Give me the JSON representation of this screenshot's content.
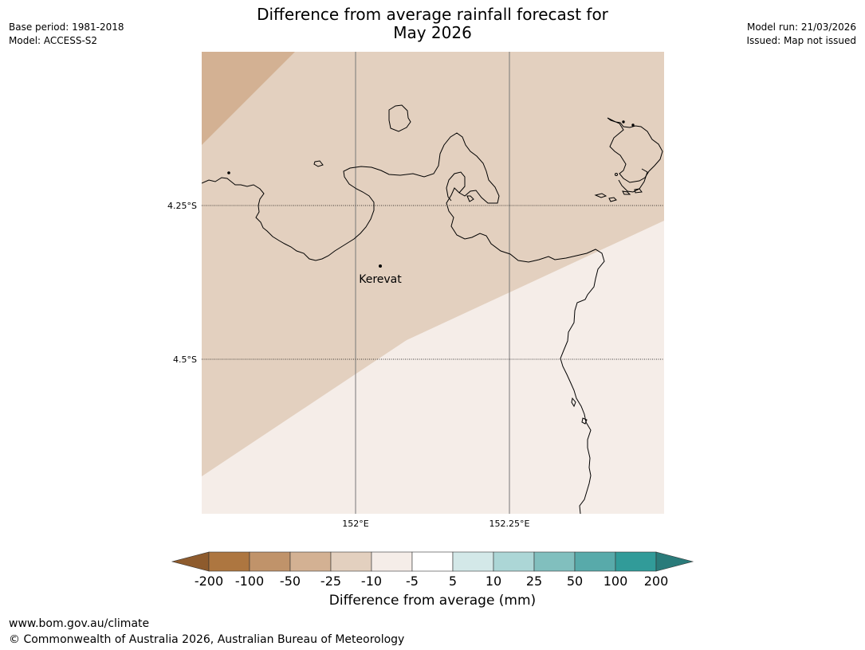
{
  "header": {
    "base_period": "Base period: 1981-2018",
    "model": "Model: ACCESS-S2",
    "model_run": "Model run: 21/03/2026",
    "issued": "Issued: Map not issued",
    "title_line1": "Difference from average rainfall forecast for",
    "title_line2": "May 2026"
  },
  "map": {
    "lat_labels": [
      "4.25°S",
      "4.5°S"
    ],
    "lon_labels": [
      "152°E",
      "152.25°E"
    ],
    "place": {
      "name": "Kerevat",
      "lat": -4.35,
      "lon": 152.04
    },
    "extent": {
      "lon_min": 151.75,
      "lon_max": 152.5,
      "lat_min": -4.75,
      "lat_max": -4.0
    },
    "shading_colors": {
      "-50 to -25": "#d3b193",
      "-25 to -10": "#e3d0bf",
      "-10 to -5": "#f5ede8"
    }
  },
  "colorbar": {
    "title": "Difference from average (mm)",
    "ticks": [
      "-200",
      "-100",
      "-50",
      "-25",
      "-10",
      "-5",
      "5",
      "10",
      "25",
      "50",
      "100",
      "200"
    ],
    "colors": [
      "#8e5b2d",
      "#ad7640",
      "#c0936a",
      "#d3b193",
      "#e3d0bf",
      "#f5ede8",
      "#ffffff",
      "#d3e8e8",
      "#acd6d6",
      "#81bfbe",
      "#58aaaa",
      "#319b99",
      "#2a7b7a"
    ]
  },
  "footer": {
    "url": "www.bom.gov.au/climate",
    "copyright": "© Commonwealth of Australia 2026, Australian Bureau of Meteorology"
  }
}
